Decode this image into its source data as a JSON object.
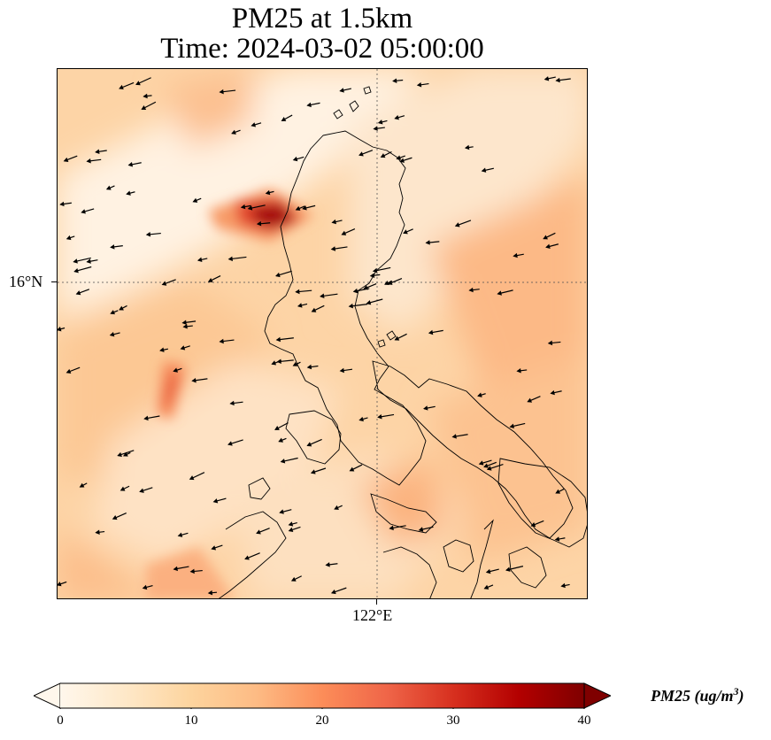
{
  "title": {
    "line1": "PM25 at 1.5km",
    "line2": "Time: 2024-03-02 05:00:00"
  },
  "map": {
    "lat_tick_label": "16°N",
    "lon_tick_label": "122°E",
    "field_variable": "PM25",
    "field_units": "ug/m^3",
    "colormap": "OrRd",
    "vector_field": "wind arrows (predominantly from the northeast)",
    "gridlines": "dotted"
  },
  "colorbar": {
    "label_text": "PM25 (ug/m",
    "label_exponent": "3",
    "label_close": ")",
    "min": 0,
    "max": 40,
    "extend": "both",
    "ticks": [
      "0",
      "10",
      "20",
      "30",
      "40"
    ],
    "colors": [
      "#fff7ec",
      "#fee8c8",
      "#fdd49e",
      "#fdbb84",
      "#fc8d59",
      "#ef6548",
      "#d7301f",
      "#b30000",
      "#7f0000"
    ]
  }
}
